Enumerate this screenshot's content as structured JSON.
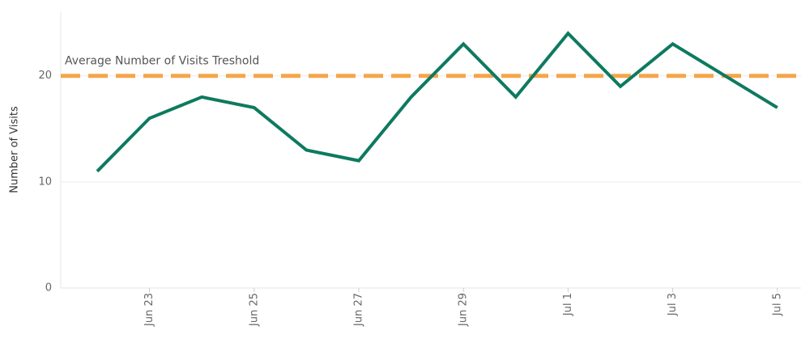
{
  "chart_data": {
    "type": "line",
    "y_label": "Number of Visits",
    "categories": [
      null,
      "Jun 23",
      null,
      "Jun 25",
      null,
      "Jun 27",
      null,
      "Jun 29",
      null,
      "Jul 1",
      null,
      "Jul 3",
      null,
      "Jul 5"
    ],
    "series": [
      {
        "color": "#0e7a5f",
        "values": [
          11,
          16,
          18,
          17,
          13,
          12,
          18,
          23,
          18,
          24,
          19,
          23,
          20,
          17
        ]
      }
    ],
    "ylim": [
      0,
      26
    ],
    "yticks": [
      0,
      10,
      20
    ],
    "grid": true,
    "reference_line": {
      "value": 20,
      "label": "Average Number of Visits Treshold",
      "color": "#f5a54a"
    }
  }
}
